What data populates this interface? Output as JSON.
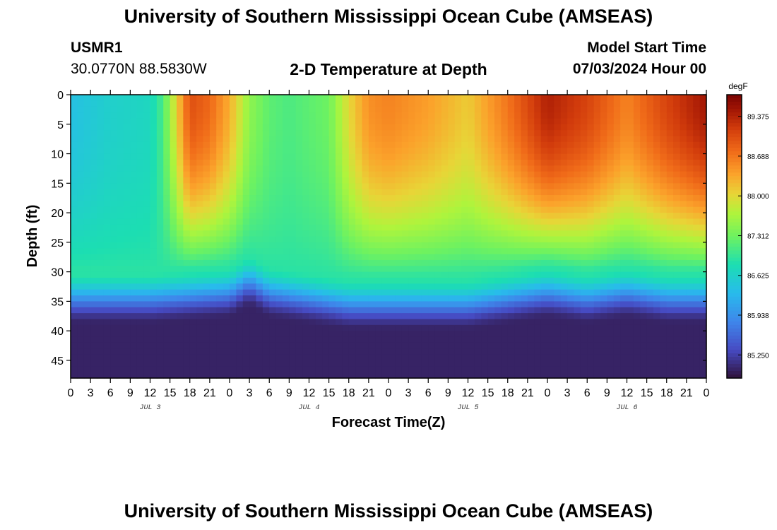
{
  "header": {
    "title": "University of Southern Mississippi Ocean Cube (AMSEAS)",
    "station_id": "USMR1",
    "coords": "30.0770N  88.5830W",
    "plot_title": "2-D Temperature at Depth",
    "model_start_label": "Model Start Time",
    "model_start_value": "07/03/2024 Hour 00"
  },
  "footer": {
    "title": "University of Southern Mississippi Ocean Cube (AMSEAS)"
  },
  "chart_data": {
    "type": "heatmap",
    "title": "2-D Temperature at Depth",
    "xlabel": "Forecast Time(Z)",
    "ylabel": "Depth (ft)",
    "x_unit": "hours since 07/03/2024 00Z",
    "xlim": [
      0,
      96
    ],
    "ylim": [
      0,
      48
    ],
    "x_ticks": [
      0,
      3,
      6,
      9,
      12,
      15,
      18,
      21,
      24,
      27,
      30,
      33,
      36,
      39,
      42,
      45,
      48,
      51,
      54,
      57,
      60,
      63,
      66,
      69,
      72,
      75,
      78,
      81,
      84,
      87,
      90,
      93,
      96
    ],
    "x_tick_labels": [
      "0",
      "3",
      "6",
      "9",
      "12",
      "15",
      "18",
      "21",
      "0",
      "3",
      "6",
      "9",
      "12",
      "15",
      "18",
      "21",
      "0",
      "3",
      "6",
      "9",
      "12",
      "15",
      "18",
      "21",
      "0",
      "3",
      "6",
      "9",
      "12",
      "15",
      "18",
      "21",
      "0"
    ],
    "day_labels": [
      {
        "label": "JUL 3",
        "x": 12
      },
      {
        "label": "JUL 4",
        "x": 36
      },
      {
        "label": "JUL 5",
        "x": 60
      },
      {
        "label": "JUL 6",
        "x": 84
      }
    ],
    "y_ticks": [
      0,
      5,
      10,
      15,
      20,
      25,
      30,
      35,
      40,
      45
    ],
    "y_tick_labels": [
      "0",
      "5",
      "10",
      "15",
      "20",
      "25",
      "30",
      "35",
      "40",
      "45"
    ],
    "colorbar": {
      "unit": "degF",
      "min": 84.85,
      "max": 89.75,
      "ticks": [
        89.375,
        88.688,
        88.0,
        87.312,
        86.625,
        85.938,
        85.25
      ],
      "tick_labels": [
        "89.375",
        "88.688",
        "88.000",
        "87.312",
        "86.625",
        "85.938",
        "85.250"
      ]
    },
    "surface_temperature_profile": {
      "hours": [
        0,
        6,
        12,
        14,
        18,
        21,
        24,
        27,
        30,
        33,
        36,
        39,
        42,
        45,
        48,
        54,
        60,
        66,
        72,
        78,
        84,
        90,
        96
      ],
      "values": [
        86.4,
        86.6,
        86.7,
        87.1,
        89.0,
        88.8,
        88.3,
        87.5,
        87.2,
        87.1,
        87.2,
        87.3,
        88.0,
        88.5,
        88.6,
        88.4,
        88.1,
        88.7,
        89.4,
        89.1,
        88.6,
        89.1,
        89.5
      ]
    },
    "mixed_layer_depth_ft": {
      "hours": [
        0,
        12,
        24,
        27,
        30,
        36,
        42,
        48,
        54,
        60,
        66,
        72,
        78,
        84,
        90,
        96
      ],
      "values": [
        32,
        32,
        31,
        29,
        31,
        32,
        33,
        33,
        33,
        33,
        32,
        31,
        32,
        31,
        32,
        32
      ]
    },
    "bottom_temperature_degF": 85.0
  }
}
